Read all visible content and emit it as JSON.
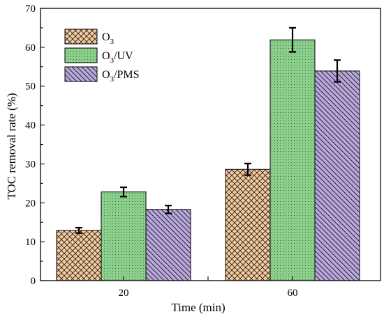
{
  "chart_data": {
    "type": "bar",
    "title": "",
    "xlabel": "Time (min)",
    "ylabel": "TOC removal rate (%)",
    "ylim": [
      0,
      70
    ],
    "yticks": [
      0,
      10,
      20,
      30,
      40,
      50,
      60,
      70
    ],
    "categories": [
      "20",
      "60"
    ],
    "series": [
      {
        "name": "O3",
        "name_base": "O",
        "name_sub": "3",
        "name_suffix": "",
        "values": [
          12.9,
          28.6
        ],
        "errors": [
          0.7,
          1.5
        ],
        "fill": "#f5c99b",
        "hatch": "crosshatch"
      },
      {
        "name": "O3/UV",
        "name_base": "O",
        "name_sub": "3",
        "name_suffix": "/UV",
        "values": [
          22.8,
          61.9
        ],
        "errors": [
          1.2,
          3.1
        ],
        "fill": "#8ccf8c",
        "hatch": "dots"
      },
      {
        "name": "O3/PMS",
        "name_base": "O",
        "name_sub": "3",
        "name_suffix": "/PMS",
        "values": [
          18.3,
          53.9
        ],
        "errors": [
          1.0,
          2.8
        ],
        "fill": "#b8a6dc",
        "hatch": "diagonal"
      }
    ],
    "grid": false,
    "legend_position": "top-left"
  }
}
